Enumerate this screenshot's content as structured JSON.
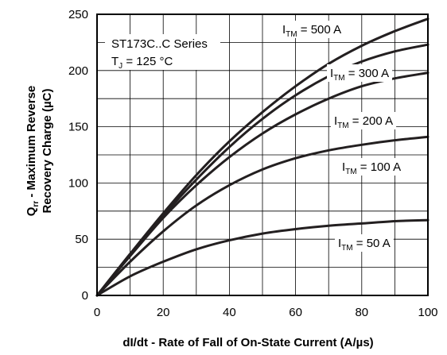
{
  "chart_data": {
    "type": "line",
    "info": {
      "series_name": "ST173C..C Series",
      "condition_base": "T",
      "condition_sub": "J",
      "condition_value": " = 125 °C"
    },
    "xlabel": "dI/dt - Rate of Fall of On-State Current (A/µs)",
    "ylabel": {
      "line1_sym": "Q",
      "line1_sub": "rr",
      "line1_rest": " - Maximum Reverse",
      "line2": "Recovery Charge (µC)"
    },
    "xlim": [
      0,
      100
    ],
    "ylim": [
      0,
      250
    ],
    "x_ticks": [
      0,
      20,
      40,
      60,
      80,
      100
    ],
    "y_ticks": [
      0,
      50,
      100,
      150,
      200,
      250
    ],
    "grid": true,
    "series": [
      {
        "label_base": "I",
        "label_sub": "TM",
        "label_value": " = 500 A",
        "x": [
          0,
          10,
          20,
          30,
          40,
          50,
          60,
          70,
          80,
          90,
          100
        ],
        "y": [
          0,
          37,
          73,
          107,
          137,
          163,
          186,
          206,
          222,
          235,
          246
        ]
      },
      {
        "label_base": "I",
        "label_sub": "TM",
        "label_value": " = 300 A",
        "x": [
          0,
          10,
          20,
          30,
          40,
          50,
          60,
          70,
          80,
          90,
          100
        ],
        "y": [
          0,
          36,
          71,
          103,
          132,
          157,
          178,
          195,
          208,
          217,
          223
        ]
      },
      {
        "label_base": "I",
        "label_sub": "TM",
        "label_value": " = 200 A",
        "x": [
          0,
          10,
          20,
          30,
          40,
          50,
          60,
          70,
          80,
          90,
          100
        ],
        "y": [
          0,
          35,
          69,
          98,
          123,
          144,
          161,
          175,
          186,
          193,
          198
        ]
      },
      {
        "label_base": "I",
        "label_sub": "TM",
        "label_value": " = 100 A",
        "x": [
          0,
          10,
          20,
          30,
          40,
          50,
          60,
          70,
          80,
          90,
          100
        ],
        "y": [
          0,
          30,
          57,
          80,
          98,
          112,
          122,
          129,
          134,
          138,
          141
        ]
      },
      {
        "label_base": "I",
        "label_sub": "TM",
        "label_value": " = 50 A",
        "x": [
          0,
          10,
          20,
          30,
          40,
          50,
          60,
          70,
          80,
          90,
          100
        ],
        "y": [
          0,
          17,
          30,
          41,
          49,
          55,
          59,
          62,
          64,
          66,
          67
        ]
      }
    ]
  }
}
